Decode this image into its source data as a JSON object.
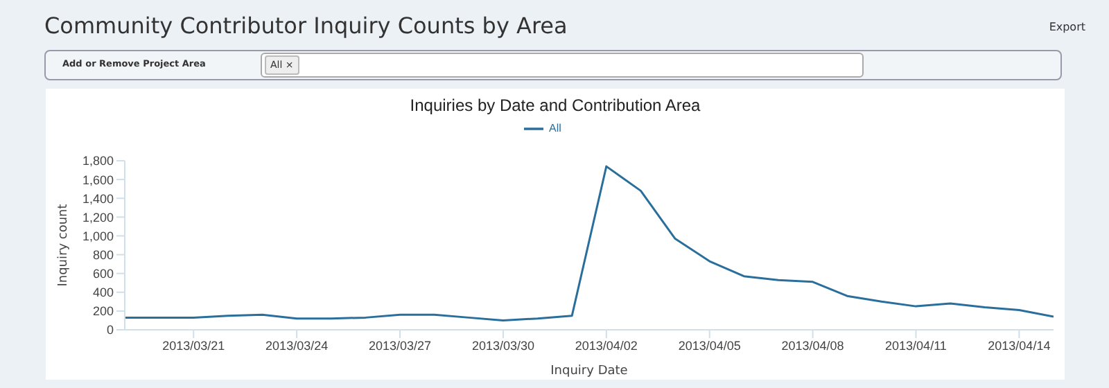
{
  "chart_data": {
    "type": "line",
    "title": "Community Contributor Inquiry Counts by Area",
    "subtitle": "Inquiries by Date and Contribution Area",
    "xlabel": "Inquiry Date",
    "ylabel": "Inquiry count",
    "annotations": [
      "Export",
      "Add or Remove Project Area",
      "All ×"
    ],
    "x": [
      "2013-03-19",
      "2013-03-20",
      "2013-03-21",
      "2013-03-22",
      "2013-03-23",
      "2013-03-24",
      "2013-03-25",
      "2013-03-26",
      "2013-03-27",
      "2013-03-28",
      "2013-03-29",
      "2013-03-30",
      "2013-03-31",
      "2013-04-01",
      "2013-04-02",
      "2013-04-03",
      "2013-04-04",
      "2013-04-05",
      "2013-04-06",
      "2013-04-07",
      "2013-04-08",
      "2013-04-09",
      "2013-04-10",
      "2013-04-11",
      "2013-04-12",
      "2013-04-13",
      "2013-04-14",
      "2013-04-15"
    ],
    "series": [
      {
        "name": "All",
        "color": "#2a6f9b",
        "values": [
          130,
          130,
          130,
          150,
          160,
          120,
          120,
          130,
          160,
          160,
          130,
          100,
          120,
          150,
          1740,
          1480,
          970,
          730,
          570,
          530,
          510,
          360,
          300,
          250,
          280,
          240,
          210,
          140
        ]
      }
    ],
    "xlim": [
      "2013-03-19",
      "2013-04-15"
    ],
    "xticks": [
      {
        "value": "2013-03-21",
        "label": "2013/03/21"
      },
      {
        "value": "2013-03-24",
        "label": "2013/03/24"
      },
      {
        "value": "2013-03-27",
        "label": "2013/03/27"
      },
      {
        "value": "2013-03-30",
        "label": "2013/03/30"
      },
      {
        "value": "2013-04-02",
        "label": "2013/04/02"
      },
      {
        "value": "2013-04-05",
        "label": "2013/04/05"
      },
      {
        "value": "2013-04-08",
        "label": "2013/04/08"
      },
      {
        "value": "2013-04-11",
        "label": "2013/04/11"
      },
      {
        "value": "2013-04-14",
        "label": "2013/04/14"
      }
    ],
    "ylim": [
      0,
      1800
    ],
    "yticks": [
      0,
      200,
      400,
      600,
      800,
      {
        "value": 1000,
        "label": "1,000"
      },
      {
        "value": 1200,
        "label": "1,200"
      },
      {
        "value": 1400,
        "label": "1,400"
      },
      {
        "value": 1600,
        "label": "1,600"
      },
      {
        "value": 1800,
        "label": "1,800"
      }
    ],
    "grid": false,
    "legend": "top",
    "marker": "none",
    "line_style": "solid"
  }
}
